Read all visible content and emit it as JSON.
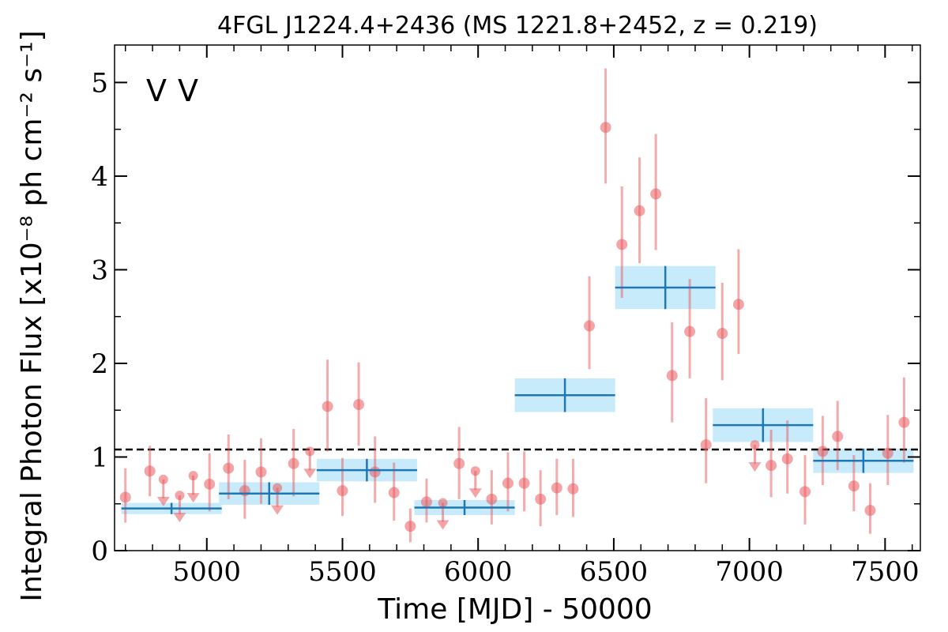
{
  "chart_data": {
    "type": "scatter",
    "title": "4FGL J1224.4+2436 (MS 1221.8+2452, z = 0.219)",
    "xlabel": "Time [MJD] - 50000",
    "ylabel": "Integral Photon Flux [x10⁻⁸ ph cm⁻² s⁻¹]",
    "xlim": [
      4660,
      7630
    ],
    "ylim": [
      0,
      5.4
    ],
    "xticks": [
      5000,
      5500,
      6000,
      6500,
      7000,
      7500
    ],
    "xtick_labels": [
      "5000",
      "5500",
      "6000",
      "6500",
      "7000",
      "7500"
    ],
    "yticks": [
      0,
      1,
      2,
      3,
      4,
      5
    ],
    "ytick_labels": [
      "0",
      "1",
      "2",
      "3",
      "4",
      "5"
    ],
    "reference_line": 1.08,
    "markers": [
      {
        "text": "V",
        "color": "#1f77b4"
      },
      {
        "text": "V",
        "color": "#d62728"
      }
    ],
    "colors": {
      "short_bins": "#e8595c",
      "long_bins": "#1f77b4",
      "band": "#c8ebfb"
    },
    "long_bins": [
      {
        "x": 4870,
        "y": 0.45,
        "xerr": 185,
        "yerr": 0.06
      },
      {
        "x": 5230,
        "y": 0.61,
        "xerr": 185,
        "yerr": 0.12
      },
      {
        "x": 5590,
        "y": 0.86,
        "xerr": 185,
        "yerr": 0.12
      },
      {
        "x": 5950,
        "y": 0.46,
        "xerr": 185,
        "yerr": 0.08
      },
      {
        "x": 6320,
        "y": 1.66,
        "xerr": 185,
        "yerr": 0.18
      },
      {
        "x": 6690,
        "y": 2.81,
        "xerr": 185,
        "yerr": 0.23
      },
      {
        "x": 7050,
        "y": 1.34,
        "xerr": 185,
        "yerr": 0.18
      },
      {
        "x": 7420,
        "y": 0.96,
        "xerr": 185,
        "yerr": 0.13
      }
    ],
    "short_bins": [
      {
        "x": 4700,
        "y": 0.57,
        "lo": 0.3,
        "hi": 0.88
      },
      {
        "x": 4790,
        "y": 0.85,
        "lo": 0.58,
        "hi": 1.12
      },
      {
        "x": 4840,
        "y": 0.76,
        "ul": true
      },
      {
        "x": 4900,
        "y": 0.59,
        "ul": true
      },
      {
        "x": 4950,
        "y": 0.8,
        "ul": true
      },
      {
        "x": 5010,
        "y": 0.71,
        "lo": 0.42,
        "hi": 1.04
      },
      {
        "x": 5080,
        "y": 0.88,
        "lo": 0.55,
        "hi": 1.24
      },
      {
        "x": 5140,
        "y": 0.64,
        "lo": 0.34,
        "hi": 0.97
      },
      {
        "x": 5200,
        "y": 0.84,
        "lo": 0.5,
        "hi": 1.2
      },
      {
        "x": 5260,
        "y": 0.67,
        "ul": true
      },
      {
        "x": 5320,
        "y": 0.93,
        "lo": 0.58,
        "hi": 1.3
      },
      {
        "x": 5380,
        "y": 1.06,
        "ul": true
      },
      {
        "x": 5445,
        "y": 1.54,
        "lo": 1.06,
        "hi": 2.04
      },
      {
        "x": 5500,
        "y": 0.64,
        "lo": 0.37,
        "hi": 0.99
      },
      {
        "x": 5560,
        "y": 1.56,
        "lo": 1.12,
        "hi": 2.01
      },
      {
        "x": 5620,
        "y": 0.84,
        "lo": 0.51,
        "hi": 1.22
      },
      {
        "x": 5690,
        "y": 0.62,
        "lo": 0.32,
        "hi": 0.94
      },
      {
        "x": 5750,
        "y": 0.26,
        "lo": 0.09,
        "hi": 0.45
      },
      {
        "x": 5810,
        "y": 0.52,
        "lo": 0.3,
        "hi": 0.77
      },
      {
        "x": 5870,
        "y": 0.51,
        "ul": true
      },
      {
        "x": 5930,
        "y": 0.93,
        "lo": 0.55,
        "hi": 1.32
      },
      {
        "x": 5990,
        "y": 0.85,
        "ul": true
      },
      {
        "x": 6050,
        "y": 0.55,
        "lo": 0.28,
        "hi": 0.86
      },
      {
        "x": 6110,
        "y": 0.72,
        "lo": 0.42,
        "hi": 1.05
      },
      {
        "x": 6170,
        "y": 0.72,
        "lo": 0.42,
        "hi": 1.06
      },
      {
        "x": 6230,
        "y": 0.55,
        "lo": 0.26,
        "hi": 0.86
      },
      {
        "x": 6290,
        "y": 0.67,
        "lo": 0.38,
        "hi": 0.98
      },
      {
        "x": 6350,
        "y": 0.66,
        "lo": 0.36,
        "hi": 0.98
      },
      {
        "x": 6410,
        "y": 2.4,
        "lo": 1.94,
        "hi": 2.93
      },
      {
        "x": 6470,
        "y": 4.52,
        "lo": 3.92,
        "hi": 5.15
      },
      {
        "x": 6530,
        "y": 3.27,
        "lo": 2.7,
        "hi": 3.89
      },
      {
        "x": 6595,
        "y": 3.63,
        "lo": 3.07,
        "hi": 4.2
      },
      {
        "x": 6655,
        "y": 3.81,
        "lo": 3.21,
        "hi": 4.45
      },
      {
        "x": 6715,
        "y": 1.87,
        "lo": 1.37,
        "hi": 2.44
      },
      {
        "x": 6780,
        "y": 2.34,
        "lo": 1.84,
        "hi": 2.9
      },
      {
        "x": 6840,
        "y": 1.13,
        "lo": 0.72,
        "hi": 1.63
      },
      {
        "x": 6900,
        "y": 2.32,
        "lo": 1.82,
        "hi": 2.86
      },
      {
        "x": 6960,
        "y": 2.63,
        "lo": 2.1,
        "hi": 3.22
      },
      {
        "x": 7020,
        "y": 1.13,
        "ul": true
      },
      {
        "x": 7080,
        "y": 0.91,
        "lo": 0.57,
        "hi": 1.29
      },
      {
        "x": 7140,
        "y": 0.98,
        "lo": 0.61,
        "hi": 1.39
      },
      {
        "x": 7205,
        "y": 0.63,
        "lo": 0.28,
        "hi": 1.02
      },
      {
        "x": 7270,
        "y": 1.06,
        "lo": 0.7,
        "hi": 1.44
      },
      {
        "x": 7325,
        "y": 1.22,
        "lo": 0.86,
        "hi": 1.6
      },
      {
        "x": 7385,
        "y": 0.69,
        "lo": 0.42,
        "hi": 1.02
      },
      {
        "x": 7445,
        "y": 0.43,
        "lo": 0.18,
        "hi": 0.72
      },
      {
        "x": 7510,
        "y": 1.04,
        "lo": 0.7,
        "hi": 1.45
      },
      {
        "x": 7570,
        "y": 1.37,
        "lo": 0.94,
        "hi": 1.85
      }
    ]
  }
}
